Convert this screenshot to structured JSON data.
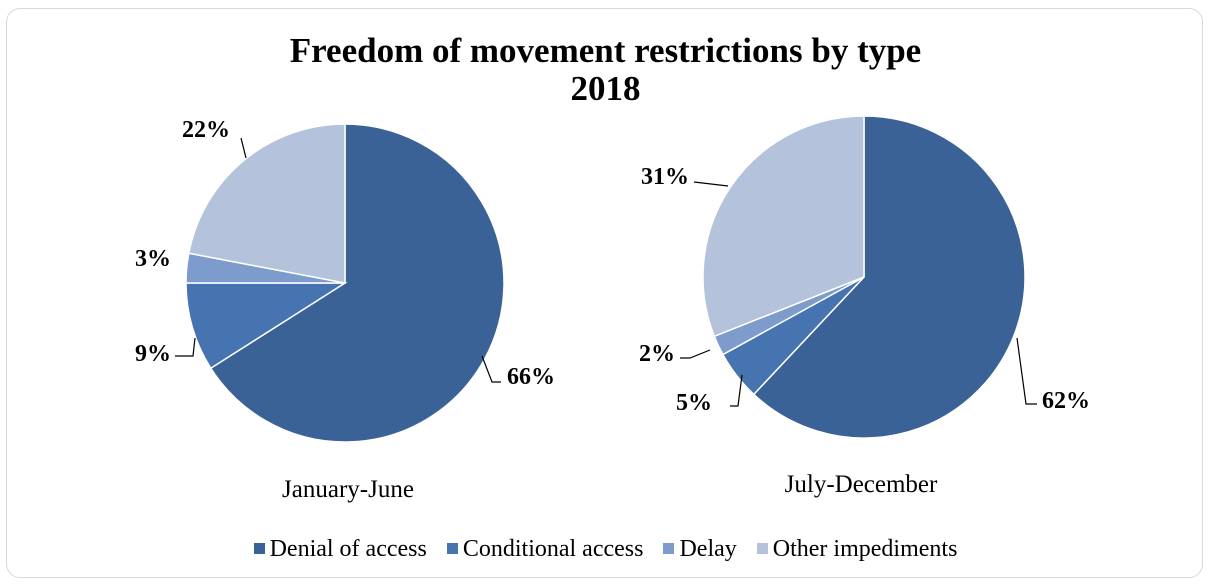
{
  "title_line1": "Freedom of movement restrictions by type",
  "title_line2": "2018",
  "colors": {
    "Denial of access": "#3a6296",
    "Conditional access": "#4674b0",
    "Delay": "#7e9ccb",
    "Other impediments": "#b4c2dc"
  },
  "legend": [
    "Denial of access",
    "Conditional access",
    "Delay",
    "Other impediments"
  ],
  "chart_data": [
    {
      "type": "pie",
      "subtitle": "January-June",
      "categories": [
        "Denial of access",
        "Conditional access",
        "Delay",
        "Other impediments"
      ],
      "values": [
        66,
        9,
        3,
        22
      ],
      "labels": [
        "66%",
        "9%",
        "3%",
        "22%"
      ]
    },
    {
      "type": "pie",
      "subtitle": "July-December",
      "categories": [
        "Denial of access",
        "Conditional access",
        "Delay",
        "Other impediments"
      ],
      "values": [
        62,
        5,
        2,
        31
      ],
      "labels": [
        "62%",
        "5%",
        "2%",
        "31%"
      ]
    }
  ]
}
